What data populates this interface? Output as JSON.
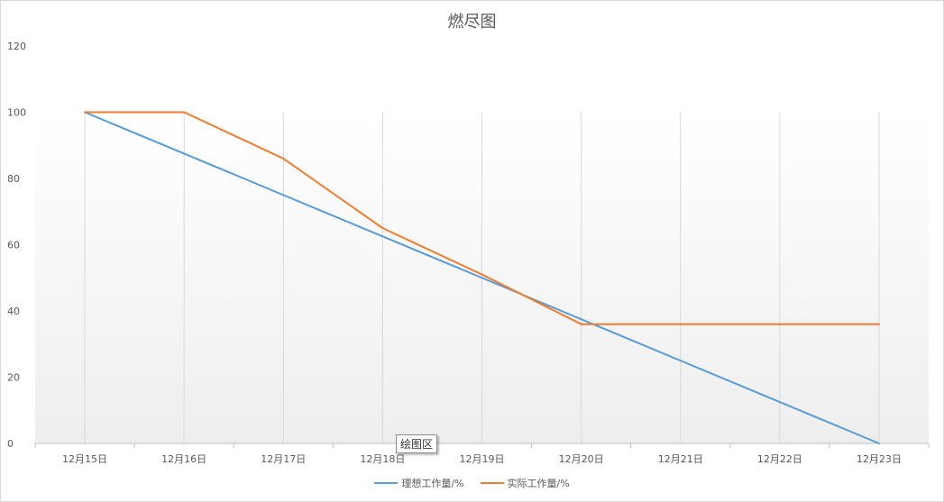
{
  "chart_data": {
    "type": "line",
    "title": "燃尽图",
    "categories": [
      "12月15日",
      "12月16日",
      "12月17日",
      "12月18日",
      "12月19日",
      "12月20日",
      "12月21日",
      "12月22日",
      "12月23日"
    ],
    "series": [
      {
        "name": "理想工作量/%",
        "color": "#5B9BD5",
        "values": [
          100,
          87.5,
          75,
          62.5,
          50,
          37.5,
          25,
          12.5,
          0
        ]
      },
      {
        "name": "实际工作量/%",
        "color": "#ED7D31",
        "values": [
          100,
          100,
          86,
          65,
          51,
          36,
          36,
          36,
          36
        ]
      }
    ],
    "ylim": [
      0,
      120
    ],
    "yticks": [
      0,
      20,
      40,
      60,
      80,
      100,
      120
    ],
    "grid": "vertical",
    "legend_position": "bottom"
  },
  "tooltip": "绘图区"
}
